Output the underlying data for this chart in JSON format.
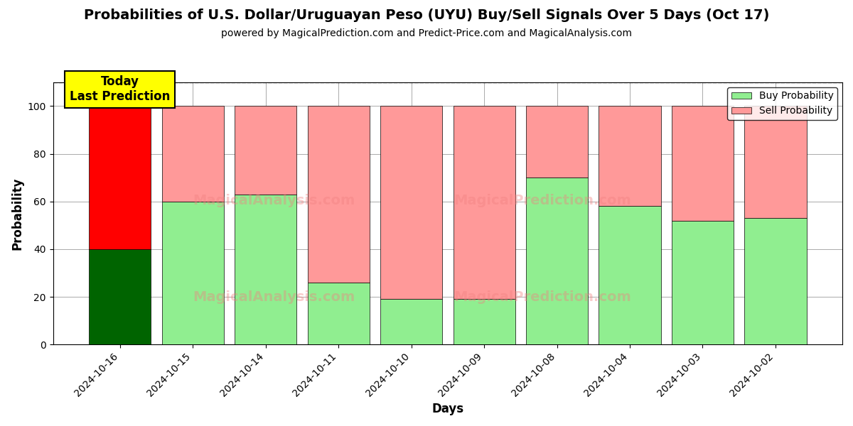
{
  "title": "Probabilities of U.S. Dollar/Uruguayan Peso (UYU) Buy/Sell Signals Over 5 Days (Oct 17)",
  "subtitle": "powered by MagicalPrediction.com and Predict-Price.com and MagicalAnalysis.com",
  "xlabel": "Days",
  "ylabel": "Probability",
  "dates": [
    "2024-10-16",
    "2024-10-15",
    "2024-10-14",
    "2024-10-11",
    "2024-10-10",
    "2024-10-09",
    "2024-10-08",
    "2024-10-04",
    "2024-10-03",
    "2024-10-02"
  ],
  "buy_values": [
    40,
    60,
    63,
    26,
    19,
    19,
    70,
    58,
    52,
    53
  ],
  "sell_values": [
    60,
    40,
    37,
    74,
    81,
    81,
    30,
    42,
    48,
    47
  ],
  "buy_colors": [
    "#006400",
    "#90EE90",
    "#90EE90",
    "#90EE90",
    "#90EE90",
    "#90EE90",
    "#90EE90",
    "#90EE90",
    "#90EE90",
    "#90EE90"
  ],
  "sell_colors": [
    "#FF0000",
    "#FF9999",
    "#FF9999",
    "#FF9999",
    "#FF9999",
    "#FF9999",
    "#FF9999",
    "#FF9999",
    "#FF9999",
    "#FF9999"
  ],
  "today_label": "Today\nLast Prediction",
  "today_bg": "#FFFF00",
  "legend_buy_color": "#90EE90",
  "legend_sell_color": "#FF9999",
  "ylim": [
    0,
    110
  ],
  "dashed_line_y": 110,
  "bar_width": 0.85,
  "grid_color": "#aaaaaa",
  "background_color": "#ffffff"
}
